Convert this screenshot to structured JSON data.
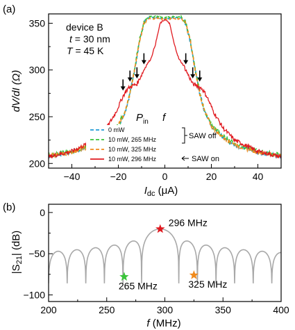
{
  "chart_data": [
    {
      "type": "line",
      "panel_label": "(a)",
      "xlabel_main": "I",
      "xlabel_sub": "dc",
      "xlabel_unit": " (μA)",
      "ylabel": "dV/dI (Ω)",
      "xlim": [
        -50,
        50
      ],
      "ylim": [
        195,
        360
      ],
      "xticks": [
        -40,
        -20,
        0,
        20,
        40
      ],
      "yticks": [
        200,
        250,
        300,
        350
      ],
      "annotation": {
        "line1": "device B",
        "line2_var": "t",
        "line2_rest": " = 30 nm",
        "line3_var": "T",
        "line3_rest": " = 45 K"
      },
      "legend": {
        "header_p": "P",
        "header_p_sub": "in",
        "header_f": "f",
        "entries": [
          {
            "label": "0 mW",
            "color": "#1f9bd6",
            "dash": true
          },
          {
            "label": "10 mW, 265 MHz",
            "color": "#3ac43a",
            "dash": true
          },
          {
            "label": "10 mW, 325 MHz",
            "color": "#f08a1c",
            "dash": true
          },
          {
            "label": "10 mW, 296 MHz",
            "color": "#e0191f",
            "dash": false
          }
        ],
        "saw_off": "SAW off",
        "saw_on": "SAW on"
      },
      "arrows_x": [
        -18,
        -15,
        -12,
        -9,
        9,
        12,
        15
      ],
      "series": [
        {
          "name": "0 mW",
          "color": "#1f9bd6",
          "points": [
            [
              -50,
              208
            ],
            [
              -40,
              212
            ],
            [
              -30,
              220
            ],
            [
              -25,
              228
            ],
            [
              -20,
              240
            ],
            [
              -17,
              256
            ],
            [
              -15,
              275
            ],
            [
              -13,
              300
            ],
            [
              -11,
              330
            ],
            [
              -9,
              350
            ],
            [
              -7,
              356
            ],
            [
              -3,
              356
            ],
            [
              0,
              355
            ],
            [
              3,
              356
            ],
            [
              7,
              356
            ],
            [
              9,
              350
            ],
            [
              11,
              330
            ],
            [
              13,
              300
            ],
            [
              15,
              275
            ],
            [
              17,
              256
            ],
            [
              20,
              240
            ],
            [
              25,
              228
            ],
            [
              30,
              220
            ],
            [
              40,
              212
            ],
            [
              50,
              208
            ]
          ]
        },
        {
          "name": "10 mW, 265 MHz",
          "color": "#3ac43a",
          "points": [
            [
              -50,
              209
            ],
            [
              -40,
              213
            ],
            [
              -30,
              221
            ],
            [
              -25,
              229
            ],
            [
              -20,
              241
            ],
            [
              -17,
              257
            ],
            [
              -15,
              276
            ],
            [
              -13,
              301
            ],
            [
              -11,
              331
            ],
            [
              -9,
              351
            ],
            [
              -7,
              357
            ],
            [
              -3,
              357
            ],
            [
              0,
              356
            ],
            [
              3,
              357
            ],
            [
              7,
              357
            ],
            [
              9,
              351
            ],
            [
              11,
              331
            ],
            [
              13,
              301
            ],
            [
              15,
              276
            ],
            [
              17,
              257
            ],
            [
              20,
              241
            ],
            [
              25,
              229
            ],
            [
              30,
              221
            ],
            [
              40,
              213
            ],
            [
              50,
              209
            ]
          ]
        },
        {
          "name": "10 mW, 325 MHz",
          "color": "#f08a1c",
          "points": [
            [
              -50,
              208
            ],
            [
              -40,
              212
            ],
            [
              -30,
              220
            ],
            [
              -25,
              228
            ],
            [
              -20,
              240
            ],
            [
              -17,
              256
            ],
            [
              -15,
              275
            ],
            [
              -13,
              300
            ],
            [
              -11,
              330
            ],
            [
              -9,
              350
            ],
            [
              -7,
              355
            ],
            [
              -3,
              355
            ],
            [
              0,
              354
            ],
            [
              3,
              355
            ],
            [
              7,
              355
            ],
            [
              9,
              350
            ],
            [
              11,
              330
            ],
            [
              13,
              300
            ],
            [
              15,
              275
            ],
            [
              17,
              256
            ],
            [
              20,
              240
            ],
            [
              25,
              228
            ],
            [
              30,
              220
            ],
            [
              40,
              212
            ],
            [
              50,
              208
            ]
          ]
        },
        {
          "name": "10 mW, 296 MHz",
          "color": "#e0191f",
          "points": [
            [
              -50,
              207
            ],
            [
              -40,
              213
            ],
            [
              -30,
              225
            ],
            [
              -25,
              238
            ],
            [
              -21,
              255
            ],
            [
              -18,
              272
            ],
            [
              -16,
              280
            ],
            [
              -14,
              283
            ],
            [
              -12,
              285
            ],
            [
              -10,
              295
            ],
            [
              -8,
              305
            ],
            [
              -6,
              312
            ],
            [
              -4,
              328
            ],
            [
              -2,
              350
            ],
            [
              0,
              354
            ],
            [
              2,
              350
            ],
            [
              4,
              328
            ],
            [
              6,
              312
            ],
            [
              8,
              305
            ],
            [
              10,
              295
            ],
            [
              12,
              285
            ],
            [
              14,
              283
            ],
            [
              16,
              280
            ],
            [
              18,
              272
            ],
            [
              21,
              255
            ],
            [
              25,
              238
            ],
            [
              30,
              225
            ],
            [
              40,
              213
            ],
            [
              50,
              207
            ]
          ]
        }
      ]
    },
    {
      "type": "line",
      "panel_label": "(b)",
      "xlabel_var": "f",
      "xlabel_unit": " (MHz)",
      "ylabel_main": "|S",
      "ylabel_sub": "21",
      "ylabel_unit": "| (dB)",
      "xlim": [
        200,
        400
      ],
      "ylim": [
        -108,
        10
      ],
      "xticks": [
        200,
        250,
        300,
        350,
        400
      ],
      "yticks": [
        0,
        -50,
        -100
      ],
      "series": [
        {
          "name": "",
          "color": "#a8a8a8",
          "center": 296,
          "peak": -20
        }
      ],
      "markers": [
        {
          "x": 296,
          "y": -20,
          "color": "#e0191f",
          "label": "296 MHz"
        },
        {
          "x": 265,
          "y": -78,
          "color": "#3ac43a",
          "label": "265 MHz"
        },
        {
          "x": 325,
          "y": -76,
          "color": "#f08a1c",
          "label": "325 MHz"
        }
      ]
    }
  ]
}
